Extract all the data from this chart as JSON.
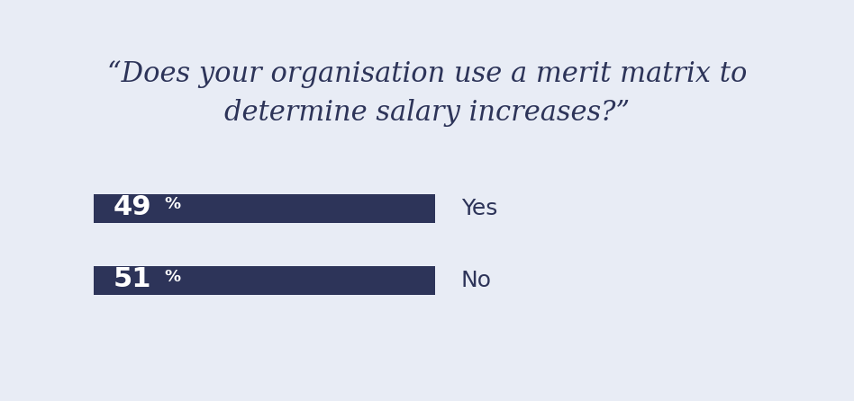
{
  "title_line1": "“Does your organisation use a merit matrix to",
  "title_line2": "determine salary increases?”",
  "categories": [
    "Yes",
    "No"
  ],
  "values": [
    49,
    51
  ],
  "value_labels": [
    "49",
    "51"
  ],
  "bar_color": "#2d3459",
  "background_color": "#e8ecf5",
  "title_color": "#2d3459",
  "label_color": "#ffffff",
  "category_color": "#2d3459",
  "title_fontsize": 22,
  "num_fontsize": 22,
  "pct_fontsize": 13,
  "category_fontsize": 18
}
